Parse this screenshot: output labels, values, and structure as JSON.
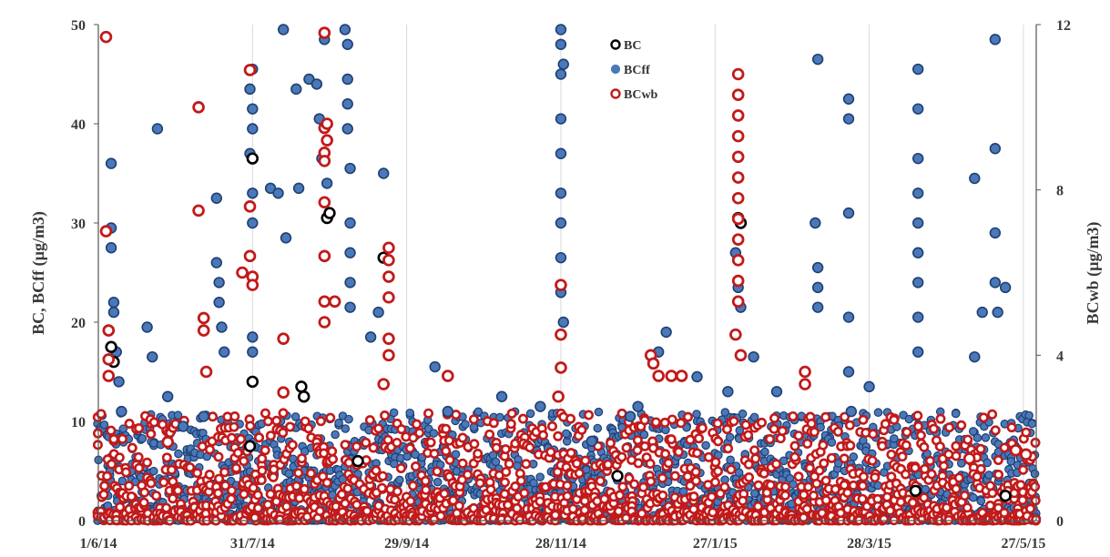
{
  "chart_data": {
    "type": "scatter",
    "title": "",
    "ylabel": "BC, BCff (µg/m3)",
    "y2label": "BCwb (µg/m3)",
    "ylim": [
      0,
      50
    ],
    "y2lim": [
      0,
      12
    ],
    "yticks": [
      0,
      10,
      20,
      30,
      40,
      50
    ],
    "y2ticks": [
      0,
      4,
      8,
      12
    ],
    "xlim": [
      "2014-06-01",
      "2015-06-01"
    ],
    "xtick_labels": [
      {
        "date": "2014-06-01",
        "label": "1/6/14"
      },
      {
        "date": "2014-07-31",
        "label": "31/7/14"
      },
      {
        "date": "2014-09-29",
        "label": "29/9/14"
      },
      {
        "date": "2014-11-28",
        "label": "28/11/14"
      },
      {
        "date": "2015-01-27",
        "label": "27/1/15"
      },
      {
        "date": "2015-03-28",
        "label": "28/3/15"
      },
      {
        "date": "2015-05-27",
        "label": "27/5/15"
      }
    ],
    "grid": "vertical",
    "legend_position": "top-center",
    "series": [
      {
        "name": "BC",
        "axis": "left",
        "color": "#000000",
        "points": [
          [
            "2014-06-06",
            17.5
          ],
          [
            "2014-06-07",
            16.0
          ],
          [
            "2014-07-31",
            14.0
          ],
          [
            "2014-07-31",
            36.5
          ],
          [
            "2014-08-19",
            13.5
          ],
          [
            "2014-08-20",
            12.5
          ],
          [
            "2014-08-29",
            30.5
          ],
          [
            "2014-08-30",
            31.0
          ],
          [
            "2014-09-20",
            26.5
          ],
          [
            "2015-02-05",
            30.5
          ],
          [
            "2015-02-06",
            30.0
          ],
          [
            "2014-07-30",
            7.5
          ],
          [
            "2014-09-10",
            6.0
          ],
          [
            "2014-12-20",
            4.5
          ],
          [
            "2015-04-15",
            3.0
          ],
          [
            "2015-05-20",
            2.5
          ]
        ]
      },
      {
        "name": "BCff",
        "axis": "left",
        "color": "#4a78b8",
        "points": [
          [
            "2014-06-06",
            36
          ],
          [
            "2014-06-06",
            29.5
          ],
          [
            "2014-06-06",
            27.5
          ],
          [
            "2014-06-07",
            22
          ],
          [
            "2014-06-07",
            21
          ],
          [
            "2014-06-08",
            17
          ],
          [
            "2014-06-09",
            14
          ],
          [
            "2014-06-10",
            11
          ],
          [
            "2014-06-20",
            19.5
          ],
          [
            "2014-06-22",
            16.5
          ],
          [
            "2014-06-24",
            39.5
          ],
          [
            "2014-06-28",
            12.5
          ],
          [
            "2014-07-04",
            9.5
          ],
          [
            "2014-07-12",
            10.5
          ],
          [
            "2014-07-17",
            32.5
          ],
          [
            "2014-07-17",
            26
          ],
          [
            "2014-07-18",
            24
          ],
          [
            "2014-07-18",
            22
          ],
          [
            "2014-07-19",
            19.5
          ],
          [
            "2014-07-20",
            17
          ],
          [
            "2014-07-30",
            37
          ],
          [
            "2014-07-30",
            43.5
          ],
          [
            "2014-07-31",
            45.5
          ],
          [
            "2014-07-31",
            41.5
          ],
          [
            "2014-07-31",
            39.5
          ],
          [
            "2014-07-31",
            33
          ],
          [
            "2014-07-31",
            30
          ],
          [
            "2014-07-31",
            18.5
          ],
          [
            "2014-07-31",
            17
          ],
          [
            "2014-08-07",
            33.5
          ],
          [
            "2014-08-10",
            33
          ],
          [
            "2014-08-12",
            49.5
          ],
          [
            "2014-08-13",
            28.5
          ],
          [
            "2014-08-17",
            43.5
          ],
          [
            "2014-08-18",
            33.5
          ],
          [
            "2014-08-22",
            44.5
          ],
          [
            "2014-08-25",
            44
          ],
          [
            "2014-08-26",
            40.5
          ],
          [
            "2014-08-27",
            36.5
          ],
          [
            "2014-08-28",
            48.5
          ],
          [
            "2014-08-29",
            34
          ],
          [
            "2014-09-05",
            49.5
          ],
          [
            "2014-09-06",
            48
          ],
          [
            "2014-09-06",
            44.5
          ],
          [
            "2014-09-06",
            42
          ],
          [
            "2014-09-06",
            39.5
          ],
          [
            "2014-09-07",
            35.5
          ],
          [
            "2014-09-07",
            30
          ],
          [
            "2014-09-07",
            27
          ],
          [
            "2014-09-07",
            24
          ],
          [
            "2014-09-07",
            21.5
          ],
          [
            "2014-09-20",
            35
          ],
          [
            "2014-09-18",
            21
          ],
          [
            "2014-09-15",
            18.5
          ],
          [
            "2014-10-10",
            15.5
          ],
          [
            "2014-10-15",
            11
          ],
          [
            "2014-11-05",
            12.5
          ],
          [
            "2014-11-20",
            11.5
          ],
          [
            "2014-11-28",
            49.5
          ],
          [
            "2014-11-28",
            48
          ],
          [
            "2014-11-28",
            45
          ],
          [
            "2014-11-28",
            40.5
          ],
          [
            "2014-11-28",
            37
          ],
          [
            "2014-11-28",
            33
          ],
          [
            "2014-11-28",
            30
          ],
          [
            "2014-11-28",
            26.5
          ],
          [
            "2014-11-28",
            23
          ],
          [
            "2014-11-29",
            46
          ],
          [
            "2014-11-29",
            20
          ],
          [
            "2014-12-10",
            8
          ],
          [
            "2014-12-25",
            10.5
          ],
          [
            "2014-12-28",
            11.5
          ],
          [
            "2015-01-05",
            17
          ],
          [
            "2015-01-08",
            19
          ],
          [
            "2015-01-20",
            14.5
          ],
          [
            "2015-02-01",
            13
          ],
          [
            "2015-02-04",
            27
          ],
          [
            "2015-02-05",
            23.5
          ],
          [
            "2015-02-06",
            21.5
          ],
          [
            "2015-02-11",
            16.5
          ],
          [
            "2015-02-20",
            13
          ],
          [
            "2015-03-08",
            46.5
          ],
          [
            "2015-03-07",
            30
          ],
          [
            "2015-03-08",
            25.5
          ],
          [
            "2015-03-08",
            23.5
          ],
          [
            "2015-03-08",
            21.5
          ],
          [
            "2015-03-20",
            42.5
          ],
          [
            "2015-03-20",
            40.5
          ],
          [
            "2015-03-20",
            31
          ],
          [
            "2015-03-20",
            20.5
          ],
          [
            "2015-03-20",
            15
          ],
          [
            "2015-03-21",
            11
          ],
          [
            "2015-03-28",
            13.5
          ],
          [
            "2015-04-16",
            45.5
          ],
          [
            "2015-04-16",
            41.5
          ],
          [
            "2015-04-16",
            36.5
          ],
          [
            "2015-04-16",
            33
          ],
          [
            "2015-04-16",
            30
          ],
          [
            "2015-04-16",
            27
          ],
          [
            "2015-04-16",
            24
          ],
          [
            "2015-04-16",
            20.5
          ],
          [
            "2015-04-16",
            17
          ],
          [
            "2015-05-08",
            34.5
          ],
          [
            "2015-05-08",
            16.5
          ],
          [
            "2015-05-11",
            21
          ],
          [
            "2015-05-16",
            48.5
          ],
          [
            "2015-05-16",
            37.5
          ],
          [
            "2015-05-16",
            29
          ],
          [
            "2015-05-16",
            24
          ],
          [
            "2015-05-17",
            21
          ],
          [
            "2015-05-20",
            23.5
          ]
        ]
      },
      {
        "name": "BCwb",
        "axis": "right",
        "color": "#c21a1a",
        "points": [
          [
            "2014-06-04",
            11.7
          ],
          [
            "2014-06-04",
            7.0
          ],
          [
            "2014-06-05",
            4.6
          ],
          [
            "2014-06-05",
            3.9
          ],
          [
            "2014-06-05",
            3.5
          ],
          [
            "2014-06-28",
            1.9
          ],
          [
            "2014-07-10",
            10.0
          ],
          [
            "2014-07-10",
            7.5
          ],
          [
            "2014-07-12",
            4.9
          ],
          [
            "2014-07-12",
            4.6
          ],
          [
            "2014-07-13",
            3.6
          ],
          [
            "2014-07-27",
            6.0
          ],
          [
            "2014-07-30",
            10.9
          ],
          [
            "2014-07-30",
            7.6
          ],
          [
            "2014-07-30",
            6.4
          ],
          [
            "2014-07-31",
            5.9
          ],
          [
            "2014-07-31",
            5.7
          ],
          [
            "2014-08-12",
            4.4
          ],
          [
            "2014-08-12",
            3.1
          ],
          [
            "2014-08-28",
            11.8
          ],
          [
            "2014-08-28",
            9.5
          ],
          [
            "2014-08-28",
            8.9
          ],
          [
            "2014-08-28",
            8.7
          ],
          [
            "2014-08-28",
            7.7
          ],
          [
            "2014-08-28",
            6.4
          ],
          [
            "2014-08-28",
            5.3
          ],
          [
            "2014-08-28",
            4.8
          ],
          [
            "2014-08-29",
            9.2
          ],
          [
            "2014-08-29",
            9.6
          ],
          [
            "2014-09-01",
            5.3
          ],
          [
            "2014-09-22",
            6.6
          ],
          [
            "2014-09-22",
            6.3
          ],
          [
            "2014-09-22",
            5.9
          ],
          [
            "2014-09-22",
            5.4
          ],
          [
            "2014-09-22",
            4.4
          ],
          [
            "2014-09-22",
            4.0
          ],
          [
            "2014-09-20",
            3.3
          ],
          [
            "2014-10-15",
            3.5
          ],
          [
            "2014-11-28",
            5.7
          ],
          [
            "2014-11-28",
            4.5
          ],
          [
            "2014-11-28",
            3.7
          ],
          [
            "2014-11-27",
            3.0
          ],
          [
            "2015-01-02",
            4.0
          ],
          [
            "2015-01-03",
            3.8
          ],
          [
            "2015-01-05",
            3.5
          ],
          [
            "2015-01-10",
            3.5
          ],
          [
            "2015-01-14",
            3.5
          ],
          [
            "2015-02-05",
            10.8
          ],
          [
            "2015-02-05",
            10.3
          ],
          [
            "2015-02-05",
            9.8
          ],
          [
            "2015-02-05",
            9.3
          ],
          [
            "2015-02-05",
            8.8
          ],
          [
            "2015-02-05",
            8.3
          ],
          [
            "2015-02-05",
            7.8
          ],
          [
            "2015-02-05",
            7.3
          ],
          [
            "2015-02-05",
            6.8
          ],
          [
            "2015-02-05",
            6.3
          ],
          [
            "2015-02-05",
            5.8
          ],
          [
            "2015-02-05",
            5.3
          ],
          [
            "2015-02-04",
            4.5
          ],
          [
            "2015-02-06",
            4.0
          ],
          [
            "2015-03-03",
            3.6
          ],
          [
            "2015-03-03",
            3.3
          ],
          [
            "2015-05-06",
            1.5
          ],
          [
            "2015-05-24",
            1.7
          ],
          [
            "2015-05-28",
            1.6
          ]
        ]
      }
    ]
  }
}
